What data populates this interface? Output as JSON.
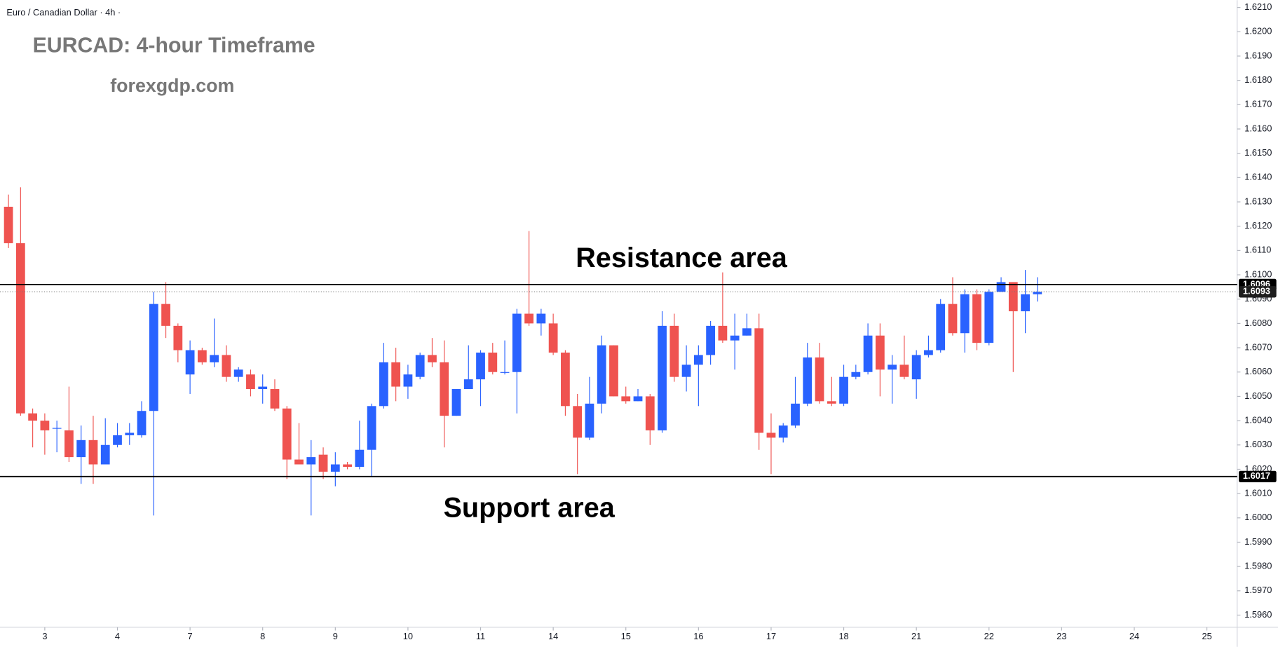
{
  "chart_data": {
    "type": "candlestick",
    "symbol": "Euro / Canadian Dollar · 4h ·",
    "title": "EURCAD: 4-hour Timeframe",
    "subtitle": "forexgdp.com",
    "annotations": [
      "Resistance area",
      "Support area"
    ],
    "up_color": "#2962ff",
    "down_color": "#ef5350",
    "x": [
      0,
      1,
      2,
      3,
      4,
      5,
      6,
      7,
      8,
      9,
      10,
      11,
      12,
      13,
      14,
      15,
      16,
      17,
      18,
      19,
      20,
      21,
      22,
      23,
      24,
      25,
      26,
      27,
      28,
      29,
      30,
      31,
      32,
      33,
      34,
      35,
      36,
      37,
      38,
      39,
      40,
      41,
      42,
      43,
      44,
      45,
      46,
      47,
      48,
      49,
      50,
      51,
      52,
      53,
      54,
      55,
      56,
      57,
      58,
      59,
      60,
      61,
      62,
      63,
      64,
      65,
      66,
      67,
      68,
      69,
      70,
      71,
      72,
      73,
      74,
      75,
      76,
      77,
      78,
      79,
      80,
      81,
      82,
      83,
      84,
      85
    ],
    "open": [
      1.6128,
      1.6113,
      1.6043,
      1.604,
      1.6037,
      1.6036,
      1.6025,
      1.6032,
      1.6022,
      1.603,
      1.6034,
      1.6034,
      1.6044,
      1.6088,
      1.6079,
      1.6059,
      1.6069,
      1.6064,
      1.6067,
      1.6058,
      1.6059,
      1.6053,
      1.6053,
      1.6045,
      1.6024,
      1.6022,
      1.6026,
      1.6019,
      1.6022,
      1.6021,
      1.6028,
      1.6046,
      1.6064,
      1.6054,
      1.6058,
      1.6067,
      1.6064,
      1.6042,
      1.6053,
      1.6057,
      1.6068,
      1.606,
      1.606,
      1.6084,
      1.608,
      1.608,
      1.6068,
      1.6046,
      1.6033,
      1.6047,
      1.6071,
      1.605,
      1.6048,
      1.605,
      1.6036,
      1.6079,
      1.6058,
      1.6063,
      1.6067,
      1.6079,
      1.6073,
      1.6075,
      1.6078,
      1.6035,
      1.6033,
      1.6038,
      1.6047,
      1.6066,
      1.6048,
      1.6047,
      1.6058,
      1.606,
      1.6075,
      1.6061,
      1.6063,
      1.6057,
      1.6067,
      1.6069,
      1.6088,
      1.6076,
      1.6092,
      1.6072,
      1.6093,
      1.6097,
      1.6085,
      1.6092
    ],
    "high": [
      1.6133,
      1.6136,
      1.6045,
      1.6043,
      1.604,
      1.6054,
      1.6038,
      1.6042,
      1.6041,
      1.6039,
      1.6039,
      1.6048,
      1.6093,
      1.6097,
      1.608,
      1.6073,
      1.607,
      1.6082,
      1.6071,
      1.6062,
      1.6061,
      1.6059,
      1.6057,
      1.6046,
      1.6039,
      1.6032,
      1.6029,
      1.6027,
      1.6023,
      1.604,
      1.6047,
      1.6072,
      1.607,
      1.6063,
      1.6068,
      1.6074,
      1.6073,
      1.6053,
      1.6071,
      1.6069,
      1.6072,
      1.6073,
      1.6086,
      1.6118,
      1.6086,
      1.6084,
      1.6069,
      1.6051,
      1.6058,
      1.6075,
      1.6071,
      1.6054,
      1.6053,
      1.6051,
      1.6085,
      1.6084,
      1.6071,
      1.6071,
      1.6081,
      1.6101,
      1.6084,
      1.6084,
      1.6084,
      1.6043,
      1.6039,
      1.6058,
      1.6072,
      1.6072,
      1.6058,
      1.6063,
      1.6063,
      1.608,
      1.608,
      1.6067,
      1.6075,
      1.6069,
      1.6075,
      1.609,
      1.6099,
      1.6094,
      1.6094,
      1.6094,
      1.6099,
      1.6097,
      1.6102,
      1.6099
    ],
    "low": [
      1.6111,
      1.6042,
      1.6029,
      1.6026,
      1.6027,
      1.6023,
      1.6014,
      1.6014,
      1.6022,
      1.6029,
      1.603,
      1.6033,
      1.6001,
      1.6074,
      1.6064,
      1.6051,
      1.6063,
      1.6062,
      1.6056,
      1.6056,
      1.605,
      1.6047,
      1.6044,
      1.6016,
      1.6022,
      1.6001,
      1.6016,
      1.6013,
      1.602,
      1.602,
      1.6017,
      1.6045,
      1.6048,
      1.6049,
      1.6057,
      1.6062,
      1.6029,
      1.6042,
      1.6053,
      1.6046,
      1.6059,
      1.6059,
      1.6043,
      1.6079,
      1.6075,
      1.6067,
      1.6042,
      1.6018,
      1.6032,
      1.6043,
      1.605,
      1.6047,
      1.6048,
      1.603,
      1.6035,
      1.6056,
      1.6052,
      1.6046,
      1.6063,
      1.6072,
      1.6061,
      1.6075,
      1.6028,
      1.6018,
      1.6031,
      1.6037,
      1.6046,
      1.6047,
      1.6046,
      1.6046,
      1.6057,
      1.6059,
      1.605,
      1.6047,
      1.6057,
      1.6049,
      1.6066,
      1.6068,
      1.6075,
      1.6068,
      1.6069,
      1.6071,
      1.6093,
      1.606,
      1.6076,
      1.6089
    ],
    "close": [
      1.6113,
      1.6043,
      1.604,
      1.6036,
      1.6037,
      1.6025,
      1.6032,
      1.6022,
      1.603,
      1.6034,
      1.6035,
      1.6044,
      1.6088,
      1.6079,
      1.6069,
      1.6069,
      1.6064,
      1.6067,
      1.6058,
      1.6061,
      1.6053,
      1.6054,
      1.6045,
      1.6024,
      1.6022,
      1.6025,
      1.6019,
      1.6022,
      1.6021,
      1.6028,
      1.6046,
      1.6064,
      1.6054,
      1.6059,
      1.6067,
      1.6064,
      1.6042,
      1.6053,
      1.6057,
      1.6068,
      1.606,
      1.606,
      1.6084,
      1.608,
      1.6084,
      1.6068,
      1.6046,
      1.6033,
      1.6047,
      1.6071,
      1.605,
      1.6048,
      1.605,
      1.6036,
      1.6079,
      1.6058,
      1.6063,
      1.6067,
      1.6079,
      1.6073,
      1.6075,
      1.6078,
      1.6035,
      1.6033,
      1.6038,
      1.6047,
      1.6066,
      1.6048,
      1.6047,
      1.6058,
      1.606,
      1.6075,
      1.6061,
      1.6063,
      1.6058,
      1.6067,
      1.6069,
      1.6088,
      1.6076,
      1.6092,
      1.6072,
      1.6093,
      1.6097,
      1.6085,
      1.6092,
      1.6093
    ],
    "levels": [
      {
        "value": 1.6096,
        "style": "solid"
      },
      {
        "value": 1.6093,
        "style": "dotted"
      },
      {
        "value": 1.6017,
        "style": "solid"
      }
    ],
    "xlim": [
      -0.7,
      101.5
    ],
    "xticks": [
      {
        "value": 3,
        "label": "3"
      },
      {
        "value": 9,
        "label": "4"
      },
      {
        "value": 15,
        "label": "7"
      },
      {
        "value": 21,
        "label": "8"
      },
      {
        "value": 27,
        "label": "9"
      },
      {
        "value": 33,
        "label": "10"
      },
      {
        "value": 39,
        "label": "11"
      },
      {
        "value": 45,
        "label": "14"
      },
      {
        "value": 51,
        "label": "15"
      },
      {
        "value": 57,
        "label": "16"
      },
      {
        "value": 63,
        "label": "17"
      },
      {
        "value": 69,
        "label": "18"
      },
      {
        "value": 75,
        "label": "21"
      },
      {
        "value": 81,
        "label": "22"
      },
      {
        "value": 87,
        "label": "23"
      },
      {
        "value": 93,
        "label": "24"
      },
      {
        "value": 99,
        "label": "25"
      }
    ],
    "ylim": [
      1.5955,
      1.6213
    ],
    "yticks": [
      {
        "value": 1.596,
        "label": "1.5960"
      },
      {
        "value": 1.597,
        "label": "1.5970"
      },
      {
        "value": 1.598,
        "label": "1.5980"
      },
      {
        "value": 1.599,
        "label": "1.5990"
      },
      {
        "value": 1.6,
        "label": "1.6000"
      },
      {
        "value": 1.601,
        "label": "1.6010"
      },
      {
        "value": 1.602,
        "label": "1.6020"
      },
      {
        "value": 1.603,
        "label": "1.6030"
      },
      {
        "value": 1.604,
        "label": "1.6040"
      },
      {
        "value": 1.605,
        "label": "1.6050"
      },
      {
        "value": 1.606,
        "label": "1.6060"
      },
      {
        "value": 1.607,
        "label": "1.6070"
      },
      {
        "value": 1.608,
        "label": "1.6080"
      },
      {
        "value": 1.609,
        "label": "1.6090"
      },
      {
        "value": 1.61,
        "label": "1.6100"
      },
      {
        "value": 1.611,
        "label": "1.6110"
      },
      {
        "value": 1.612,
        "label": "1.6120"
      },
      {
        "value": 1.613,
        "label": "1.6130"
      },
      {
        "value": 1.614,
        "label": "1.6140"
      },
      {
        "value": 1.615,
        "label": "1.6150"
      },
      {
        "value": 1.616,
        "label": "1.6160"
      },
      {
        "value": 1.617,
        "label": "1.6170"
      },
      {
        "value": 1.618,
        "label": "1.6180"
      },
      {
        "value": 1.619,
        "label": "1.6190"
      },
      {
        "value": 1.62,
        "label": "1.6200"
      },
      {
        "value": 1.621,
        "label": "1.6210"
      }
    ]
  }
}
